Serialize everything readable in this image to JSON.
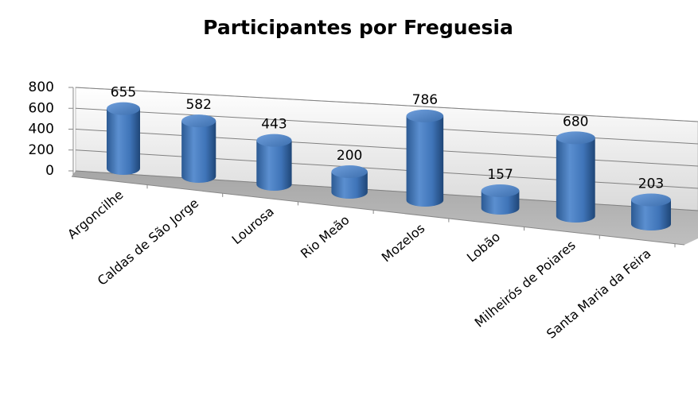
{
  "chart_data": {
    "type": "bar3d",
    "title": "Participantes por Freguesia",
    "categories": [
      "Argoncilhe",
      "Caldas de São Jorge",
      "Lourosa",
      "Rio Meão",
      "Mozelos",
      "Lobão",
      "Milheirós de Poiares",
      "Santa Maria da Feira"
    ],
    "values": [
      655,
      582,
      443,
      200,
      786,
      157,
      680,
      203
    ],
    "color": "#4f81bd",
    "ylim": [
      0,
      800
    ],
    "yticks": [
      0,
      200,
      400,
      600,
      800
    ],
    "grid": true
  }
}
